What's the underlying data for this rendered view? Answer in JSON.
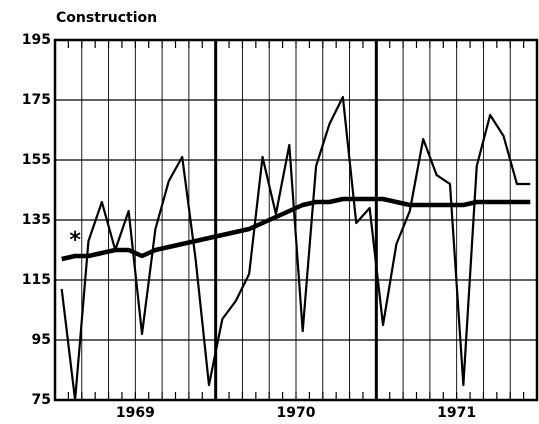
{
  "chart_data": {
    "type": "line",
    "title": "Construction",
    "categories": [
      null,
      null,
      null,
      null,
      null,
      "1969",
      null,
      null,
      null,
      null,
      null,
      null,
      null,
      null,
      null,
      null,
      null,
      "1970",
      null,
      null,
      null,
      null,
      null,
      null,
      null,
      null,
      null,
      null,
      null,
      "1971",
      null,
      null,
      null,
      null,
      null,
      null
    ],
    "series": [
      {
        "name": null,
        "color": "#000",
        "values": [
          112,
          75,
          128,
          141,
          125,
          138,
          97,
          132,
          148,
          156,
          122,
          80,
          102,
          108,
          117,
          156,
          137,
          160,
          98,
          153,
          167,
          176,
          134,
          139,
          100,
          127,
          138,
          162,
          150,
          147,
          80,
          153,
          170,
          163,
          147,
          147
        ]
      },
      {
        "name": null,
        "color": "#000",
        "values": [
          122,
          123,
          123,
          124,
          125,
          125,
          123,
          125,
          126,
          127,
          128,
          129,
          130,
          131,
          132,
          134,
          136,
          138,
          140,
          141,
          141,
          142,
          142,
          142,
          142,
          141,
          140,
          140,
          140,
          140,
          140,
          141,
          141,
          141,
          141,
          141
        ]
      }
    ],
    "annotation": "*",
    "ylim": [
      75,
      195
    ],
    "yticks": [
      75,
      95,
      115,
      135,
      155,
      175,
      195
    ],
    "grid": true
  }
}
